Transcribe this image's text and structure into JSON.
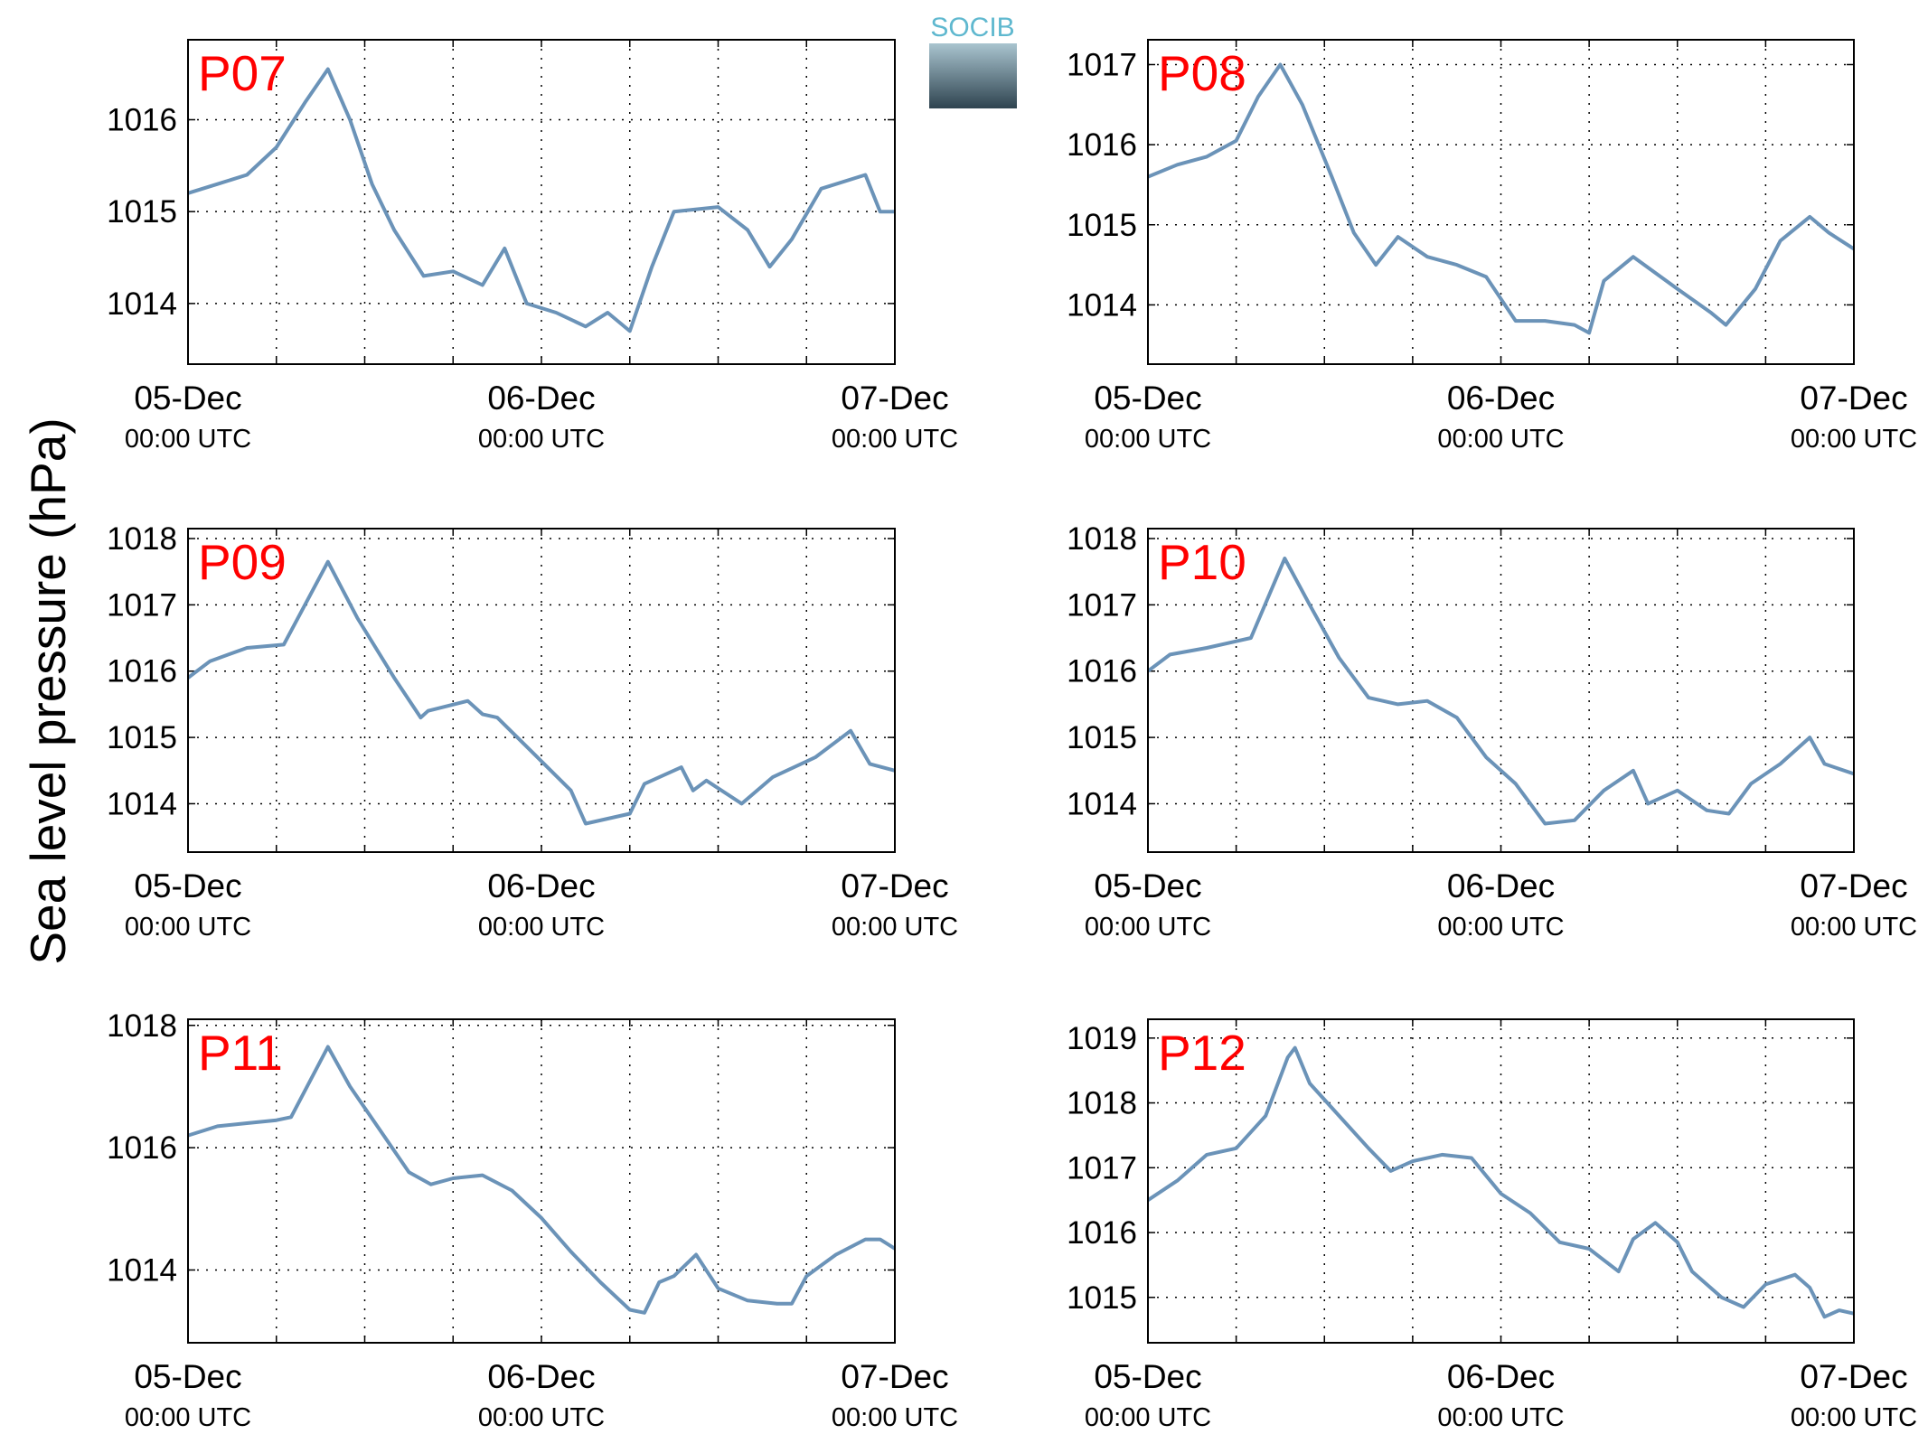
{
  "ylabel": "Sea level pressure (hPa)",
  "logo": "SOCIB",
  "chart_data": [
    {
      "type": "line",
      "title": "P07",
      "color": "#6b93b8",
      "grid": true,
      "xlim": [
        0,
        48
      ],
      "ylim": [
        1013.34,
        1016.87
      ],
      "yticks": [
        1014,
        1015,
        1016
      ],
      "xticks": [
        {
          "value": 0,
          "label": "05-Dec\n00:00 UTC"
        },
        {
          "value": 24,
          "label": "06-Dec\n00:00 UTC"
        },
        {
          "value": 48,
          "label": "07-Dec\n00:00 UTC"
        }
      ],
      "minor_xticks": [
        6,
        12,
        18,
        30,
        36,
        42
      ],
      "x": [
        0,
        2,
        4,
        6,
        8,
        9.5,
        11,
        12.5,
        14,
        16,
        18,
        20,
        21.5,
        23,
        25,
        27,
        28.5,
        30,
        31.5,
        33,
        36,
        38,
        39.5,
        41,
        43,
        46,
        47,
        48
      ],
      "values": [
        1015.2,
        1015.3,
        1015.4,
        1015.7,
        1016.2,
        1016.55,
        1016.0,
        1015.3,
        1014.8,
        1014.3,
        1014.35,
        1014.2,
        1014.6,
        1014.0,
        1013.9,
        1013.75,
        1013.9,
        1013.7,
        1014.4,
        1015.0,
        1015.05,
        1014.8,
        1014.4,
        1014.7,
        1015.25,
        1015.4,
        1015.0,
        1015.0
      ]
    },
    {
      "type": "line",
      "title": "P08",
      "color": "#6b93b8",
      "grid": true,
      "xlim": [
        0,
        48
      ],
      "ylim": [
        1013.26,
        1017.31
      ],
      "yticks": [
        1014,
        1015,
        1016,
        1017
      ],
      "xticks": [
        {
          "value": 0,
          "label": "05-Dec\n00:00 UTC"
        },
        {
          "value": 24,
          "label": "06-Dec\n00:00 UTC"
        },
        {
          "value": 48,
          "label": "07-Dec\n00:00 UTC"
        }
      ],
      "minor_xticks": [
        6,
        12,
        18,
        30,
        36,
        42
      ],
      "x": [
        0,
        2,
        4,
        6,
        7.5,
        9,
        10.5,
        12.5,
        14,
        15.5,
        17,
        19,
        21,
        23,
        25,
        27,
        29,
        30,
        31,
        33,
        36,
        38.3,
        39.3,
        41.3,
        43,
        45,
        46.3,
        48
      ],
      "values": [
        1015.6,
        1015.75,
        1015.85,
        1016.05,
        1016.6,
        1017.0,
        1016.5,
        1015.6,
        1014.9,
        1014.5,
        1014.85,
        1014.6,
        1014.5,
        1014.35,
        1013.8,
        1013.8,
        1013.75,
        1013.65,
        1014.3,
        1014.6,
        1014.2,
        1013.9,
        1013.75,
        1014.2,
        1014.8,
        1015.1,
        1014.9,
        1014.7
      ]
    },
    {
      "type": "line",
      "title": "P09",
      "color": "#6b93b8",
      "grid": true,
      "xlim": [
        0,
        48
      ],
      "ylim": [
        1013.27,
        1018.15
      ],
      "yticks": [
        1014,
        1015,
        1016,
        1017,
        1018
      ],
      "xticks": [
        {
          "value": 0,
          "label": "05-Dec\n00:00 UTC"
        },
        {
          "value": 24,
          "label": "06-Dec\n00:00 UTC"
        },
        {
          "value": 48,
          "label": "07-Dec\n00:00 UTC"
        }
      ],
      "minor_xticks": [
        6,
        12,
        18,
        30,
        36,
        42
      ],
      "x": [
        0,
        1.5,
        4,
        6.5,
        9.5,
        11.5,
        14,
        15.8,
        16.3,
        19,
        20,
        21,
        23.5,
        26,
        27,
        30,
        31,
        33.5,
        34.3,
        35.2,
        37.6,
        39.7,
        42.6,
        45,
        46.3,
        48
      ],
      "values": [
        1015.9,
        1016.15,
        1016.35,
        1016.4,
        1017.65,
        1016.8,
        1015.9,
        1015.3,
        1015.4,
        1015.55,
        1015.35,
        1015.3,
        1014.75,
        1014.2,
        1013.7,
        1013.85,
        1014.3,
        1014.55,
        1014.2,
        1014.35,
        1014.0,
        1014.4,
        1014.7,
        1015.1,
        1014.6,
        1014.5
      ]
    },
    {
      "type": "line",
      "title": "P10",
      "color": "#6b93b8",
      "grid": true,
      "xlim": [
        0,
        48
      ],
      "ylim": [
        1013.27,
        1018.15
      ],
      "yticks": [
        1014,
        1015,
        1016,
        1017,
        1018
      ],
      "xticks": [
        {
          "value": 0,
          "label": "05-Dec\n00:00 UTC"
        },
        {
          "value": 24,
          "label": "06-Dec\n00:00 UTC"
        },
        {
          "value": 48,
          "label": "07-Dec\n00:00 UTC"
        }
      ],
      "minor_xticks": [
        6,
        12,
        18,
        30,
        36,
        42
      ],
      "x": [
        0,
        1.5,
        4,
        6,
        7,
        9.3,
        11,
        13,
        15,
        17,
        19,
        21,
        23,
        25,
        27,
        29,
        31,
        33,
        34,
        36,
        38,
        39.5,
        41,
        43,
        45,
        46,
        48
      ],
      "values": [
        1016.0,
        1016.25,
        1016.35,
        1016.45,
        1016.5,
        1017.7,
        1017.0,
        1016.2,
        1015.6,
        1015.5,
        1015.55,
        1015.3,
        1014.7,
        1014.3,
        1013.7,
        1013.75,
        1014.2,
        1014.5,
        1014.0,
        1014.2,
        1013.9,
        1013.85,
        1014.3,
        1014.6,
        1015.0,
        1014.6,
        1014.45
      ]
    },
    {
      "type": "line",
      "title": "P11",
      "color": "#6b93b8",
      "grid": true,
      "xlim": [
        0,
        48
      ],
      "ylim": [
        1012.81,
        1018.1
      ],
      "yticks": [
        1014,
        1016,
        1018
      ],
      "xticks": [
        {
          "value": 0,
          "label": "05-Dec\n00:00 UTC"
        },
        {
          "value": 24,
          "label": "06-Dec\n00:00 UTC"
        },
        {
          "value": 48,
          "label": "07-Dec\n00:00 UTC"
        }
      ],
      "minor_xticks": [
        6,
        12,
        18,
        30,
        36,
        42
      ],
      "x": [
        0,
        2,
        4,
        6,
        7,
        9.5,
        11,
        13,
        15,
        16.5,
        18,
        20,
        22,
        24,
        26,
        28,
        30,
        31,
        32,
        33,
        34.5,
        36,
        38,
        40,
        41,
        42,
        44,
        46,
        47,
        48
      ],
      "values": [
        1016.2,
        1016.35,
        1016.4,
        1016.45,
        1016.5,
        1017.65,
        1017.0,
        1016.3,
        1015.6,
        1015.4,
        1015.5,
        1015.55,
        1015.3,
        1014.85,
        1014.3,
        1013.8,
        1013.35,
        1013.3,
        1013.8,
        1013.9,
        1014.25,
        1013.7,
        1013.5,
        1013.45,
        1013.45,
        1013.9,
        1014.25,
        1014.5,
        1014.5,
        1014.35
      ]
    },
    {
      "type": "line",
      "title": "P12",
      "color": "#6b93b8",
      "grid": true,
      "xlim": [
        0,
        48
      ],
      "ylim": [
        1014.3,
        1019.29
      ],
      "yticks": [
        1015,
        1016,
        1017,
        1018,
        1019
      ],
      "xticks": [
        {
          "value": 0,
          "label": "05-Dec\n00:00 UTC"
        },
        {
          "value": 24,
          "label": "06-Dec\n00:00 UTC"
        },
        {
          "value": 48,
          "label": "07-Dec\n00:00 UTC"
        }
      ],
      "minor_xticks": [
        6,
        12,
        18,
        30,
        36,
        42
      ],
      "x": [
        0,
        2,
        4,
        6,
        8,
        9.5,
        10,
        11,
        13,
        15,
        16.5,
        18,
        20,
        22,
        24,
        26,
        28,
        30,
        32,
        33,
        34.5,
        36,
        37,
        39,
        40.5,
        42,
        44,
        45,
        46,
        47,
        48
      ],
      "values": [
        1016.5,
        1016.8,
        1017.2,
        1017.3,
        1017.8,
        1018.7,
        1018.85,
        1018.3,
        1017.8,
        1017.3,
        1016.95,
        1017.1,
        1017.2,
        1017.15,
        1016.6,
        1016.3,
        1015.85,
        1015.75,
        1015.4,
        1015.9,
        1016.15,
        1015.85,
        1015.4,
        1015.0,
        1014.85,
        1015.2,
        1015.35,
        1015.15,
        1014.7,
        1014.8,
        1014.75
      ]
    }
  ]
}
